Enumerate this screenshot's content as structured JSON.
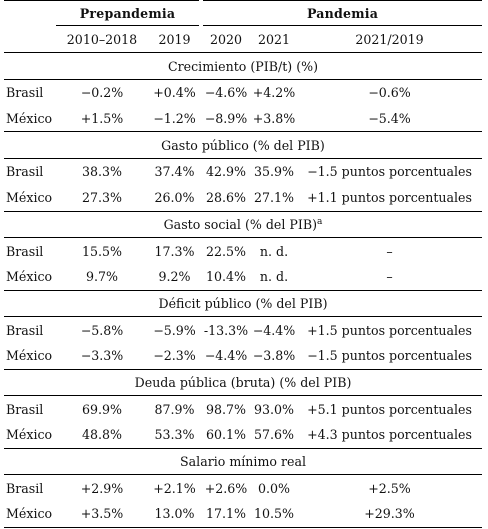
{
  "header": {
    "group_prepandemia": "Prepandemia",
    "group_pandemia": "Pandemia",
    "columns": [
      "2010–2018",
      "2019",
      "2020",
      "2021",
      "2021/2019"
    ]
  },
  "sections": [
    {
      "title": "Crecimiento (PIB/t) (%)",
      "sup": "",
      "rows": [
        {
          "country": "Brasil",
          "v": [
            "−0.2%",
            "+0.4%",
            "−4.6%",
            "+4.2%",
            "−0.6%"
          ]
        },
        {
          "country": "México",
          "v": [
            "+1.5%",
            "−1.2%",
            "−8.9%",
            "+3.8%",
            "−5.4%"
          ]
        }
      ]
    },
    {
      "title": "Gasto público (% del PIB)",
      "sup": "",
      "rows": [
        {
          "country": "Brasil",
          "v": [
            "38.3%",
            "37.4%",
            "42.9%",
            "35.9%",
            "−1.5 puntos porcentuales"
          ]
        },
        {
          "country": "México",
          "v": [
            "27.3%",
            "26.0%",
            "28.6%",
            "27.1%",
            "+1.1 puntos porcentuales"
          ]
        }
      ]
    },
    {
      "title": "Gasto social (% del PIB)",
      "sup": "a",
      "rows": [
        {
          "country": "Brasil",
          "v": [
            "15.5%",
            "17.3%",
            "22.5%",
            "n. d.",
            "–"
          ]
        },
        {
          "country": "México",
          "v": [
            "9.7%",
            "9.2%",
            "10.4%",
            "n. d.",
            "–"
          ]
        }
      ]
    },
    {
      "title": "Déficit público (% del PIB)",
      "sup": "",
      "rows": [
        {
          "country": "Brasil",
          "v": [
            "−5.8%",
            "−5.9%",
            "-13.3%",
            "−4.4%",
            "+1.5 puntos porcentuales"
          ]
        },
        {
          "country": "México",
          "v": [
            "−3.3%",
            "−2.3%",
            "−4.4%",
            "−3.8%",
            "−1.5 puntos porcentuales"
          ]
        }
      ]
    },
    {
      "title": "Deuda pública (bruta) (% del PIB)",
      "sup": "",
      "rows": [
        {
          "country": "Brasil",
          "v": [
            "69.9%",
            "87.9%",
            "98.7%",
            "93.0%",
            "+5.1 puntos porcentuales"
          ]
        },
        {
          "country": "México",
          "v": [
            "48.8%",
            "53.3%",
            "60.1%",
            "57.6%",
            "+4.3 puntos porcentuales"
          ]
        }
      ]
    },
    {
      "title": "Salario mínimo real",
      "sup": "",
      "rows": [
        {
          "country": "Brasil",
          "v": [
            "+2.9%",
            "+2.1%",
            "+2.6%",
            "0.0%",
            "+2.5%"
          ]
        },
        {
          "country": "México",
          "v": [
            "+3.5%",
            "13.0%",
            "17.1%",
            "10.5%",
            "+29.3%"
          ]
        }
      ]
    }
  ]
}
